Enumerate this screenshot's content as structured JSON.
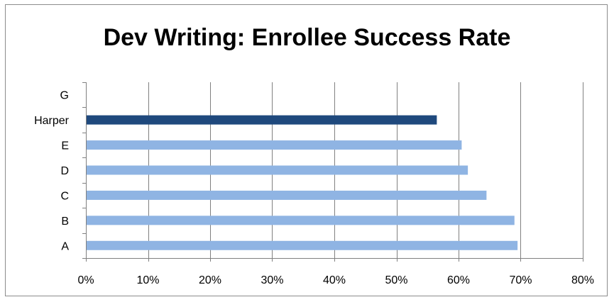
{
  "chart_data": {
    "type": "bar",
    "orientation": "horizontal",
    "title": "Dev Writing: Enrollee Success Rate",
    "xlabel": "",
    "ylabel": "",
    "categories": [
      "A",
      "B",
      "C",
      "D",
      "E",
      "Harper",
      "G"
    ],
    "values": [
      0.695,
      0.69,
      0.645,
      0.615,
      0.605,
      0.565,
      null
    ],
    "xlim": [
      0,
      0.8
    ],
    "x_ticks": [
      "0%",
      "10%",
      "20%",
      "30%",
      "40%",
      "50%",
      "60%",
      "70%",
      "80%"
    ],
    "x_tick_values": [
      0,
      0.1,
      0.2,
      0.3,
      0.4,
      0.5,
      0.6,
      0.7,
      0.8
    ],
    "grid": "vertical",
    "legend": "none",
    "colors": {
      "default_bar": "#8fb4e3",
      "highlight_bar": "#1f497d",
      "grid": "#808080",
      "axis": "#808080"
    },
    "highlight_category": "Harper"
  }
}
